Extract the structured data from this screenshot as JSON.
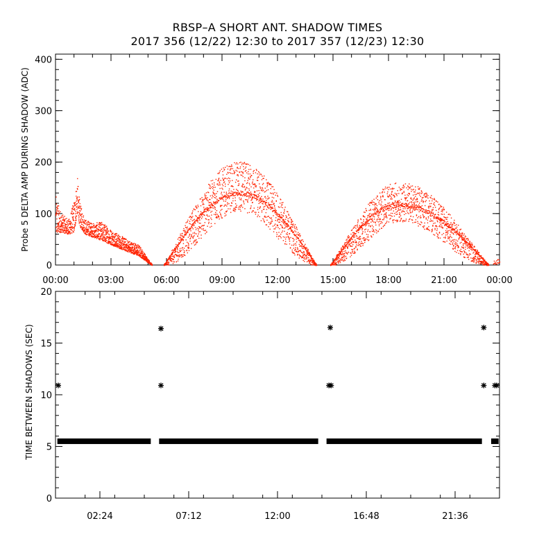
{
  "header": {
    "title": "RBSP–A SHORT ANT. SHADOW TIMES",
    "subtitle": "2017 356 (12/22) 12:30 to 2017 357 (12/23) 12:30"
  },
  "colors": {
    "data_red": "#ff2200",
    "axis": "#000000",
    "background": "#ffffff"
  },
  "chart_data": [
    {
      "type": "scatter",
      "name": "probe-5-delta-amp",
      "ylabel": "Probe 5 DELTA AMP DURING SHADOW (ADC)",
      "xlabel": "",
      "x_unit": "hours",
      "xlim": [
        0,
        24
      ],
      "ylim": [
        0,
        410
      ],
      "xticks": [
        0,
        3,
        6,
        9,
        12,
        15,
        18,
        21,
        24
      ],
      "xtick_labels": [
        "00:00",
        "03:00",
        "06:00",
        "09:00",
        "12:00",
        "15:00",
        "18:00",
        "21:00",
        "00:00"
      ],
      "yticks": [
        0,
        100,
        200,
        300,
        400
      ],
      "ytick_labels": [
        "0",
        "100",
        "200",
        "300",
        "400"
      ],
      "color": "#ff2200",
      "envelope": {
        "x": [
          0.0,
          0.3,
          0.7,
          1.0,
          1.15,
          1.3,
          1.6,
          2.0,
          2.5,
          3.0,
          3.5,
          4.0,
          4.5,
          5.0,
          5.2
        ],
        "lower": [
          60,
          65,
          60,
          65,
          100,
          75,
          60,
          55,
          48,
          40,
          32,
          25,
          18,
          5,
          0
        ],
        "upper": [
          135,
          100,
          90,
          130,
          175,
          120,
          90,
          82,
          85,
          70,
          58,
          48,
          40,
          12,
          2
        ],
        "segments": [
          {
            "x_range": [
              5.85,
              14.1
            ],
            "peak_x": 9.9,
            "lower_peak": 105,
            "upper_peak": 200,
            "mid_peak": 140
          },
          {
            "x_range": [
              14.85,
              23.4
            ],
            "peak_x": 18.6,
            "lower_peak": 85,
            "upper_peak": 160,
            "mid_peak": 118
          }
        ],
        "tail": {
          "x": [
            23.65,
            24.0
          ],
          "lower": [
            0,
            5
          ],
          "upper": [
            8,
            15
          ]
        }
      }
    },
    {
      "type": "scatter",
      "name": "time-between-shadows",
      "ylabel": "TIME BETWEEN SHADOWS (SEC)",
      "xlabel": "",
      "x_unit": "hours",
      "xlim": [
        0,
        24
      ],
      "ylim": [
        0,
        20
      ],
      "xticks": [
        2.4,
        7.2,
        12.0,
        16.8,
        21.6
      ],
      "xtick_labels": [
        "02:24",
        "07:12",
        "12:00",
        "16:48",
        "21:36"
      ],
      "yticks": [
        0,
        5,
        10,
        15,
        20
      ],
      "ytick_labels": [
        "0",
        "5",
        "10",
        "15",
        "20"
      ],
      "color": "#000000",
      "baseline": {
        "value": 5.5,
        "segments": [
          [
            0.1,
            5.15
          ],
          [
            5.6,
            14.2
          ],
          [
            14.65,
            23.05
          ],
          [
            23.55,
            23.95
          ]
        ]
      },
      "points": [
        {
          "x": 0.15,
          "y": 10.9
        },
        {
          "x": 5.7,
          "y": 16.4
        },
        {
          "x": 5.7,
          "y": 10.9
        },
        {
          "x": 14.85,
          "y": 16.5
        },
        {
          "x": 14.78,
          "y": 10.9
        },
        {
          "x": 14.9,
          "y": 10.9
        },
        {
          "x": 23.15,
          "y": 16.5
        },
        {
          "x": 23.15,
          "y": 10.9
        },
        {
          "x": 23.75,
          "y": 10.9
        },
        {
          "x": 23.85,
          "y": 10.9
        }
      ]
    }
  ]
}
